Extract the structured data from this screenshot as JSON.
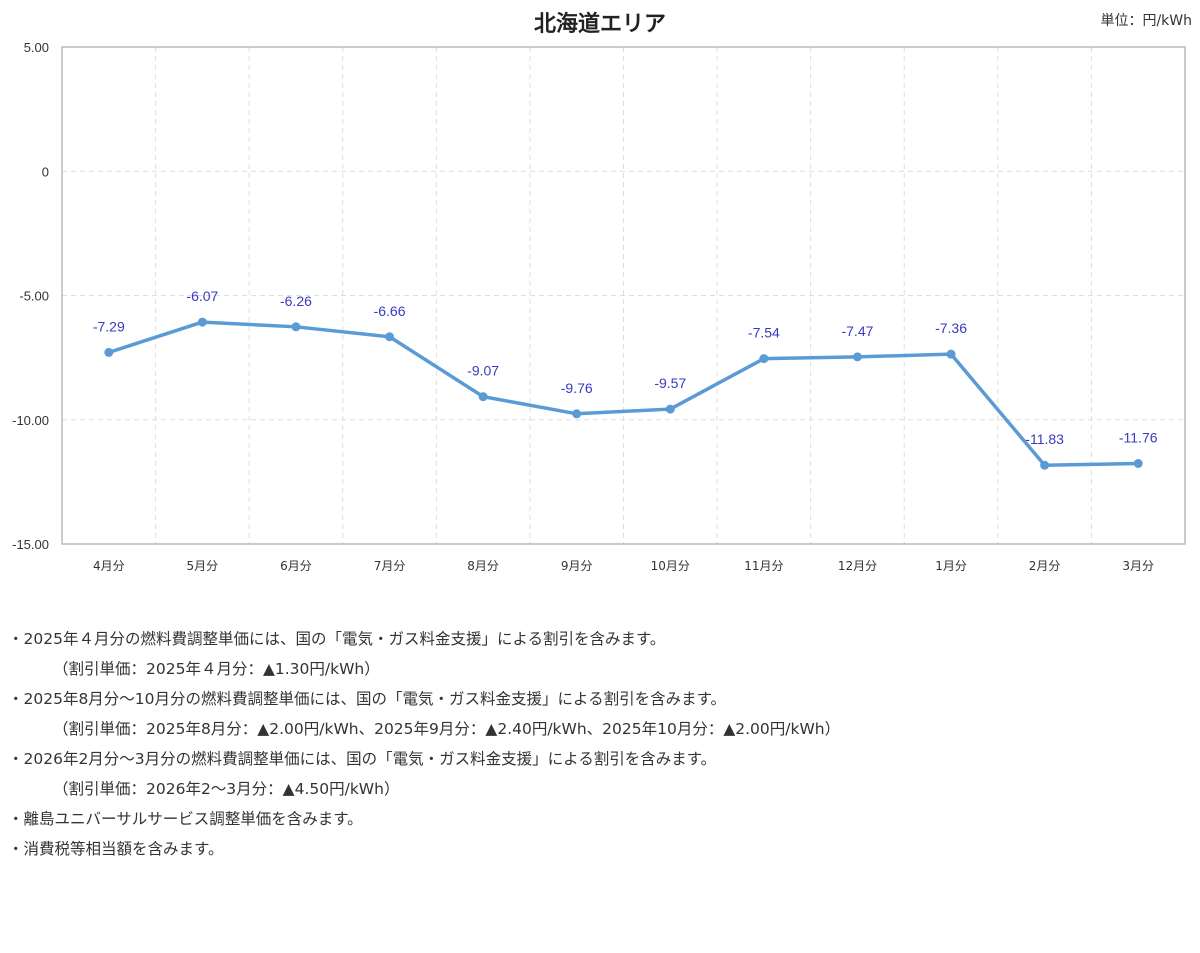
{
  "chart_data": {
    "type": "line",
    "title": "北海道エリア",
    "unit": "単位：円/kWh",
    "categories": [
      "4月分",
      "5月分",
      "6月分",
      "7月分",
      "8月分",
      "9月分",
      "10月分",
      "11月分",
      "12月分",
      "1月分",
      "2月分",
      "3月分"
    ],
    "values": [
      -7.29,
      -6.07,
      -6.26,
      -6.66,
      -9.07,
      -9.76,
      -9.57,
      -7.54,
      -7.47,
      -7.36,
      -11.83,
      -11.76
    ],
    "data_labels": [
      "-7.29",
      "-6.07",
      "-6.26",
      "-6.66",
      "-9.07",
      "-9.76",
      "-9.57",
      "-7.54",
      "-7.47",
      "-7.36",
      "-11.83",
      "-11.76"
    ],
    "ylim": [
      -15,
      5
    ],
    "yticks": [
      5,
      0,
      -5,
      -10,
      -15
    ],
    "ytick_labels": [
      "5.00",
      "0",
      "-5.00",
      "-10.00",
      "-15.00"
    ],
    "grid": true,
    "line_color": "#5b9bd5",
    "label_color": "#3a3ac0"
  },
  "notes": [
    "・2025年４月分の燃料費調整単価には、国の「電気・ガス料金支援」による割引を含みます。",
    "（割引単価：2025年４月分：▲1.30円/kWh）",
    "・2025年8月分～10月分の燃料費調整単価には、国の「電気・ガス料金支援」による割引を含みます。",
    "（割引単価：2025年8月分：▲2.00円/kWh、2025年9月分：▲2.40円/kWh、2025年10月分：▲2.00円/kWh）",
    "・2026年2月分～3月分の燃料費調整単価には、国の「電気・ガス料金支援」による割引を含みます。",
    "（割引単価：2026年2～3月分：▲4.50円/kWh）",
    "・離島ユニバーサルサービス調整単価を含みます。",
    "・消費税等相当額を含みます。"
  ]
}
